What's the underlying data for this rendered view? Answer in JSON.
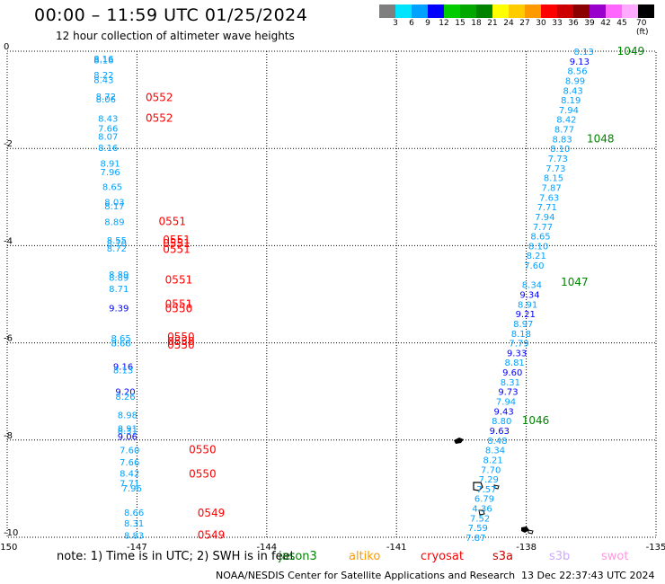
{
  "title": "00:00 – 11:59 UTC 01/25/2024",
  "subtitle": "12 hour collection of altimeter wave heights",
  "colorbar": {
    "labels": [
      "3",
      "6",
      "9",
      "12",
      "15",
      "18",
      "21",
      "24",
      "27",
      "30",
      "33",
      "36",
      "39",
      "42",
      "45",
      "70 (ft)"
    ],
    "colors": [
      "#7f7f7f",
      "#00e5ff",
      "#00a2ff",
      "#0000ff",
      "#00cc00",
      "#00a800",
      "#008400",
      "#ffff00",
      "#ffcc00",
      "#ff9900",
      "#ff0000",
      "#cc0000",
      "#8b0000",
      "#9900cc",
      "#ff66ff",
      "#ffaaff",
      "#000000"
    ]
  },
  "chart_data": {
    "type": "scatter",
    "xlim": [
      -150,
      -135
    ],
    "ylim": [
      -10,
      0
    ],
    "xticks": [
      "-150",
      "-147",
      "-144",
      "-141",
      "-138",
      "-135"
    ],
    "yticks": [
      "0",
      "-2",
      "-4",
      "-6",
      "-8",
      "-10"
    ],
    "grid": true,
    "left_track": [
      {
        "lon": -148.0,
        "lat": -0.15,
        "v": "8.16",
        "c": "#00a2ff"
      },
      {
        "lon": -148.0,
        "lat": -0.18,
        "v": "8.16",
        "c": "#00a2ff"
      },
      {
        "lon": -148.0,
        "lat": -0.48,
        "v": "8.22",
        "c": "#00a2ff"
      },
      {
        "lon": -148.0,
        "lat": -0.58,
        "v": "8.43",
        "c": "#00a2ff"
      },
      {
        "lon": -147.95,
        "lat": -0.92,
        "v": "8.72",
        "c": "#00a2ff"
      },
      {
        "lon": -147.95,
        "lat": -0.98,
        "v": "8.06",
        "c": "#00a2ff"
      },
      {
        "lon": -147.9,
        "lat": -1.38,
        "v": "8.43",
        "c": "#00a2ff"
      },
      {
        "lon": -147.9,
        "lat": -1.58,
        "v": "7.66",
        "c": "#00a2ff"
      },
      {
        "lon": -147.9,
        "lat": -1.75,
        "v": "8.07",
        "c": "#00a2ff"
      },
      {
        "lon": -147.9,
        "lat": -1.98,
        "v": "8.16",
        "c": "#00a2ff"
      },
      {
        "lon": -147.85,
        "lat": -2.3,
        "v": "8.91",
        "c": "#00a2ff"
      },
      {
        "lon": -147.85,
        "lat": -2.48,
        "v": "7.96",
        "c": "#00a2ff"
      },
      {
        "lon": -147.8,
        "lat": -2.78,
        "v": "8.65",
        "c": "#00a2ff"
      },
      {
        "lon": -147.75,
        "lat": -3.1,
        "v": "8.03",
        "c": "#00a2ff"
      },
      {
        "lon": -147.75,
        "lat": -3.18,
        "v": "8.17",
        "c": "#00a2ff"
      },
      {
        "lon": -147.75,
        "lat": -3.5,
        "v": "8.89",
        "c": "#00a2ff"
      },
      {
        "lon": -147.7,
        "lat": -3.88,
        "v": "8.55",
        "c": "#00a2ff"
      },
      {
        "lon": -147.7,
        "lat": -3.95,
        "v": "8.70",
        "c": "#00a2ff"
      },
      {
        "lon": -147.7,
        "lat": -4.05,
        "v": "8.72",
        "c": "#00a2ff"
      },
      {
        "lon": -147.65,
        "lat": -4.58,
        "v": "8.89",
        "c": "#00a2ff"
      },
      {
        "lon": -147.65,
        "lat": -4.65,
        "v": "8.89",
        "c": "#00a2ff"
      },
      {
        "lon": -147.65,
        "lat": -4.88,
        "v": "8.71",
        "c": "#00a2ff"
      },
      {
        "lon": -147.65,
        "lat": -5.28,
        "v": "9.39",
        "c": "#0000ff"
      },
      {
        "lon": -147.6,
        "lat": -5.9,
        "v": "8.65",
        "c": "#00a2ff"
      },
      {
        "lon": -147.6,
        "lat": -6.0,
        "v": "8.68",
        "c": "#00a2ff"
      },
      {
        "lon": -147.55,
        "lat": -6.48,
        "v": "9.16",
        "c": "#0000ff"
      },
      {
        "lon": -147.55,
        "lat": -6.55,
        "v": "8.13",
        "c": "#00a2ff"
      },
      {
        "lon": -147.5,
        "lat": -7.0,
        "v": "9.20",
        "c": "#0000ff"
      },
      {
        "lon": -147.5,
        "lat": -7.1,
        "v": "8.26",
        "c": "#00a2ff"
      },
      {
        "lon": -147.45,
        "lat": -7.48,
        "v": "8.98",
        "c": "#00a2ff"
      },
      {
        "lon": -147.45,
        "lat": -7.75,
        "v": "8.91",
        "c": "#00a2ff"
      },
      {
        "lon": -147.45,
        "lat": -7.8,
        "v": "8.31",
        "c": "#00a2ff"
      },
      {
        "lon": -147.45,
        "lat": -7.92,
        "v": "9.06",
        "c": "#0000ff"
      },
      {
        "lon": -147.4,
        "lat": -8.2,
        "v": "7.60",
        "c": "#00a2ff"
      },
      {
        "lon": -147.4,
        "lat": -8.45,
        "v": "7.66",
        "c": "#00a2ff"
      },
      {
        "lon": -147.4,
        "lat": -8.68,
        "v": "8.42",
        "c": "#00a2ff"
      },
      {
        "lon": -147.4,
        "lat": -8.88,
        "v": "7.71",
        "c": "#00a2ff"
      },
      {
        "lon": -147.35,
        "lat": -8.98,
        "v": "7.96",
        "c": "#00a2ff"
      },
      {
        "lon": -147.3,
        "lat": -9.48,
        "v": "8.66",
        "c": "#00a2ff"
      },
      {
        "lon": -147.3,
        "lat": -9.7,
        "v": "8.31",
        "c": "#00a2ff"
      },
      {
        "lon": -147.3,
        "lat": -9.95,
        "v": "8.83",
        "c": "#00a2ff"
      }
    ],
    "left_labels": [
      {
        "lon": -146.8,
        "lat": -0.95,
        "v": "0552",
        "c": "#ff0000"
      },
      {
        "lon": -146.8,
        "lat": -1.38,
        "v": "0552",
        "c": "#ff0000"
      },
      {
        "lon": -146.5,
        "lat": -3.5,
        "v": "0551",
        "c": "#ff0000"
      },
      {
        "lon": -146.4,
        "lat": -3.88,
        "v": "0551",
        "c": "#ff0000"
      },
      {
        "lon": -146.4,
        "lat": -3.96,
        "v": "0551",
        "c": "#ff0000"
      },
      {
        "lon": -146.4,
        "lat": -4.08,
        "v": "0551",
        "c": "#ff0000"
      },
      {
        "lon": -146.35,
        "lat": -4.7,
        "v": "0551",
        "c": "#ff0000"
      },
      {
        "lon": -146.35,
        "lat": -5.2,
        "v": "0551",
        "c": "#ff0000"
      },
      {
        "lon": -146.35,
        "lat": -5.3,
        "v": "0550",
        "c": "#ff0000"
      },
      {
        "lon": -146.3,
        "lat": -5.88,
        "v": "0550",
        "c": "#ff0000"
      },
      {
        "lon": -146.3,
        "lat": -5.97,
        "v": "0550",
        "c": "#ff0000"
      },
      {
        "lon": -146.3,
        "lat": -6.04,
        "v": "0550",
        "c": "#ff0000"
      },
      {
        "lon": -145.8,
        "lat": -8.2,
        "v": "0550",
        "c": "#ff0000"
      },
      {
        "lon": -145.8,
        "lat": -8.7,
        "v": "0550",
        "c": "#ff0000"
      },
      {
        "lon": -145.6,
        "lat": -9.5,
        "v": "0549",
        "c": "#ff0000"
      },
      {
        "lon": -145.6,
        "lat": -9.95,
        "v": "0549",
        "c": "#ff0000"
      }
    ],
    "right_track": [
      {
        "lon": -136.9,
        "lat": -0.0,
        "v": "8.13",
        "c": "#00a2ff"
      },
      {
        "lon": -137.0,
        "lat": -0.2,
        "v": "9.13",
        "c": "#0000ff"
      },
      {
        "lon": -137.05,
        "lat": -0.4,
        "v": "8.56",
        "c": "#00a2ff"
      },
      {
        "lon": -137.1,
        "lat": -0.6,
        "v": "8.99",
        "c": "#00a2ff"
      },
      {
        "lon": -137.15,
        "lat": -0.8,
        "v": "8.43",
        "c": "#00a2ff"
      },
      {
        "lon": -137.2,
        "lat": -1.0,
        "v": "8.19",
        "c": "#00a2ff"
      },
      {
        "lon": -137.25,
        "lat": -1.2,
        "v": "7.94",
        "c": "#00a2ff"
      },
      {
        "lon": -137.3,
        "lat": -1.4,
        "v": "8.42",
        "c": "#00a2ff"
      },
      {
        "lon": -137.35,
        "lat": -1.6,
        "v": "8.77",
        "c": "#00a2ff"
      },
      {
        "lon": -137.4,
        "lat": -1.8,
        "v": "8.83",
        "c": "#00a2ff"
      },
      {
        "lon": -137.45,
        "lat": -2.0,
        "v": "8.10",
        "c": "#00a2ff"
      },
      {
        "lon": -137.5,
        "lat": -2.2,
        "v": "7.73",
        "c": "#00a2ff"
      },
      {
        "lon": -137.55,
        "lat": -2.4,
        "v": "7.73",
        "c": "#00a2ff"
      },
      {
        "lon": -137.6,
        "lat": -2.6,
        "v": "8.15",
        "c": "#00a2ff"
      },
      {
        "lon": -137.65,
        "lat": -2.8,
        "v": "7.87",
        "c": "#00a2ff"
      },
      {
        "lon": -137.7,
        "lat": -3.0,
        "v": "7.63",
        "c": "#00a2ff"
      },
      {
        "lon": -137.75,
        "lat": -3.2,
        "v": "7.71",
        "c": "#00a2ff"
      },
      {
        "lon": -137.8,
        "lat": -3.4,
        "v": "7.94",
        "c": "#00a2ff"
      },
      {
        "lon": -137.85,
        "lat": -3.6,
        "v": "7.77",
        "c": "#00a2ff"
      },
      {
        "lon": -137.9,
        "lat": -3.8,
        "v": "8.65",
        "c": "#00a2ff"
      },
      {
        "lon": -137.95,
        "lat": -4.0,
        "v": "8.10",
        "c": "#00a2ff"
      },
      {
        "lon": -138.0,
        "lat": -4.2,
        "v": "8.21",
        "c": "#00a2ff"
      },
      {
        "lon": -138.05,
        "lat": -4.4,
        "v": "7.60",
        "c": "#00a2ff"
      },
      {
        "lon": -138.1,
        "lat": -4.8,
        "v": "8.34",
        "c": "#00a2ff"
      },
      {
        "lon": -138.15,
        "lat": -5.0,
        "v": "9.34",
        "c": "#0000ff"
      },
      {
        "lon": -138.2,
        "lat": -5.2,
        "v": "8.91",
        "c": "#00a2ff"
      },
      {
        "lon": -138.25,
        "lat": -5.4,
        "v": "9.21",
        "c": "#0000ff"
      },
      {
        "lon": -138.3,
        "lat": -5.6,
        "v": "8.97",
        "c": "#00a2ff"
      },
      {
        "lon": -138.35,
        "lat": -5.8,
        "v": "8.18",
        "c": "#00a2ff"
      },
      {
        "lon": -138.4,
        "lat": -6.0,
        "v": "7.79",
        "c": "#00a2ff"
      },
      {
        "lon": -138.45,
        "lat": -6.2,
        "v": "9.33",
        "c": "#0000ff"
      },
      {
        "lon": -138.5,
        "lat": -6.4,
        "v": "8.81",
        "c": "#00a2ff"
      },
      {
        "lon": -138.55,
        "lat": -6.6,
        "v": "9.60",
        "c": "#0000ff"
      },
      {
        "lon": -138.6,
        "lat": -6.8,
        "v": "8.31",
        "c": "#00a2ff"
      },
      {
        "lon": -138.65,
        "lat": -7.0,
        "v": "9.73",
        "c": "#0000ff"
      },
      {
        "lon": -138.7,
        "lat": -7.2,
        "v": "7.94",
        "c": "#00a2ff"
      },
      {
        "lon": -138.75,
        "lat": -7.4,
        "v": "9.43",
        "c": "#0000ff"
      },
      {
        "lon": -138.8,
        "lat": -7.6,
        "v": "8.80",
        "c": "#00a2ff"
      },
      {
        "lon": -138.85,
        "lat": -7.8,
        "v": "9.63",
        "c": "#0000ff"
      },
      {
        "lon": -138.9,
        "lat": -8.0,
        "v": "8.48",
        "c": "#00a2ff"
      },
      {
        "lon": -138.95,
        "lat": -8.2,
        "v": "8.34",
        "c": "#00a2ff"
      },
      {
        "lon": -139.0,
        "lat": -8.4,
        "v": "8.21",
        "c": "#00a2ff"
      },
      {
        "lon": -139.05,
        "lat": -8.6,
        "v": "7.70",
        "c": "#00a2ff"
      },
      {
        "lon": -139.1,
        "lat": -8.8,
        "v": "7.29",
        "c": "#00a2ff"
      },
      {
        "lon": -139.15,
        "lat": -9.0,
        "v": "7.57",
        "c": "#00a2ff"
      },
      {
        "lon": -139.2,
        "lat": -9.2,
        "v": "6.79",
        "c": "#00a2ff"
      },
      {
        "lon": -139.25,
        "lat": -9.4,
        "v": "4.36",
        "c": "#00a2ff"
      },
      {
        "lon": -139.3,
        "lat": -9.6,
        "v": "7.52",
        "c": "#00a2ff"
      },
      {
        "lon": -139.35,
        "lat": -9.8,
        "v": "7.59",
        "c": "#00a2ff"
      },
      {
        "lon": -139.4,
        "lat": -10.0,
        "v": "7.87",
        "c": "#00a2ff"
      }
    ],
    "right_labels": [
      {
        "lon": -135.9,
        "lat": -0.0,
        "v": "1049",
        "c": "#008400"
      },
      {
        "lon": -136.6,
        "lat": -1.8,
        "v": "1048",
        "c": "#008400"
      },
      {
        "lon": -137.2,
        "lat": -4.75,
        "v": "1047",
        "c": "#008400"
      },
      {
        "lon": -138.1,
        "lat": -7.6,
        "v": "1046",
        "c": "#008400"
      }
    ]
  },
  "footnote": "note:  1) Time is in UTC;  2) SWH is in feet",
  "legend": [
    {
      "name": "jason3",
      "color": "#008400"
    },
    {
      "name": "altiko",
      "color": "#ff9900"
    },
    {
      "name": "cryosat",
      "color": "#ff0000"
    },
    {
      "name": "s3a",
      "color": "#cc0000"
    },
    {
      "name": "s3b",
      "color": "#ccaaff"
    },
    {
      "name": "swot",
      "color": "#ff99dd"
    }
  ],
  "credit": "NOAA/NESDIS Center for Satellite Applications and Research",
  "timestamp": "13 Dec 22:37:43 UTC 2024"
}
